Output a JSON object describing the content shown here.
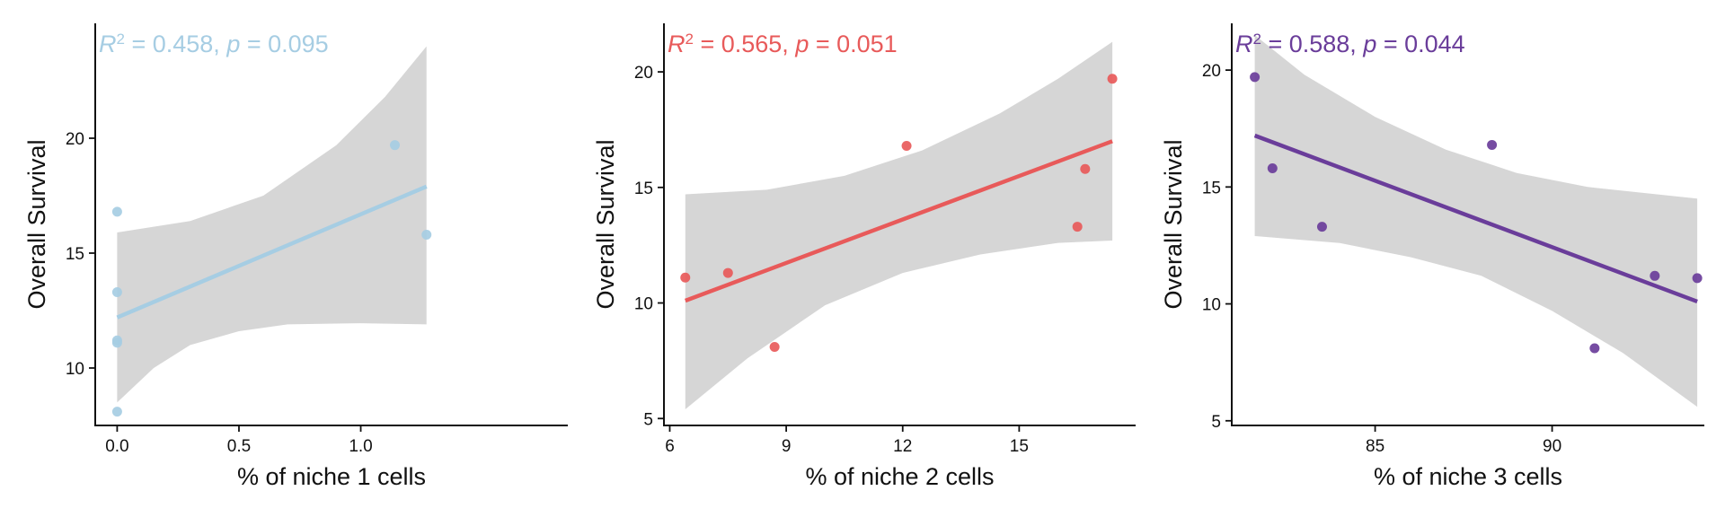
{
  "chart_data": [
    {
      "type": "scatter",
      "title": "",
      "xlabel": "% of niche 1 cells",
      "ylabel": "Overall Survival",
      "color": "#a6cde3",
      "annotation": {
        "r2_label": "R",
        "r2_sup": "2",
        "r2_value": " = 0.458, ",
        "p_label": "p",
        "p_value": " = 0.095"
      },
      "xlim": [
        -0.09,
        1.85
      ],
      "ylim": [
        7.5,
        25
      ],
      "xticks": [
        0.0,
        0.5,
        1.0
      ],
      "xtick_labels": [
        "0.0",
        "0.5",
        "1.0"
      ],
      "yticks": [
        10,
        15,
        20
      ],
      "ytick_labels": [
        "10",
        "15",
        "20"
      ],
      "points": [
        {
          "x": 0.0,
          "y": 16.8
        },
        {
          "x": 0.0,
          "y": 13.3
        },
        {
          "x": 0.0,
          "y": 11.2
        },
        {
          "x": 0.0,
          "y": 11.1
        },
        {
          "x": 0.0,
          "y": 8.1
        },
        {
          "x": 1.14,
          "y": 19.7
        },
        {
          "x": 1.27,
          "y": 15.8
        }
      ],
      "fit": {
        "x": [
          0.0,
          1.27
        ],
        "y": [
          12.2,
          17.9
        ]
      },
      "ci_upper": [
        [
          0.0,
          15.9
        ],
        [
          0.3,
          16.4
        ],
        [
          0.6,
          17.5
        ],
        [
          0.9,
          19.7
        ],
        [
          1.1,
          21.8
        ],
        [
          1.27,
          24.0
        ]
      ],
      "ci_lower": [
        [
          0.0,
          8.5
        ],
        [
          0.15,
          10.0
        ],
        [
          0.3,
          11.0
        ],
        [
          0.5,
          11.6
        ],
        [
          0.7,
          11.9
        ],
        [
          1.0,
          11.95
        ],
        [
          1.27,
          11.9
        ]
      ]
    },
    {
      "type": "scatter",
      "title": "",
      "xlabel": "% of niche 2 cells",
      "ylabel": "Overall Survival",
      "color": "#e85a5a",
      "annotation": {
        "r2_label": "R",
        "r2_sup": "2",
        "r2_value": " = 0.565, ",
        "p_label": "p",
        "p_value": " = 0.051"
      },
      "xlim": [
        5.85,
        18.0
      ],
      "ylim": [
        4.7,
        22.1
      ],
      "xticks": [
        6,
        9,
        12,
        15
      ],
      "xtick_labels": [
        "6",
        "9",
        "12",
        "15"
      ],
      "yticks": [
        5,
        10,
        15,
        20
      ],
      "ytick_labels": [
        "5",
        "10",
        "15",
        "20"
      ],
      "points": [
        {
          "x": 6.4,
          "y": 11.1
        },
        {
          "x": 7.5,
          "y": 11.3
        },
        {
          "x": 8.7,
          "y": 8.1
        },
        {
          "x": 12.1,
          "y": 16.8
        },
        {
          "x": 16.5,
          "y": 13.3
        },
        {
          "x": 16.7,
          "y": 15.8
        },
        {
          "x": 17.4,
          "y": 19.7
        }
      ],
      "fit": {
        "x": [
          6.4,
          17.4
        ],
        "y": [
          10.1,
          17.0
        ]
      },
      "ci_upper": [
        [
          6.4,
          14.7
        ],
        [
          8.5,
          14.9
        ],
        [
          10.5,
          15.5
        ],
        [
          12.5,
          16.6
        ],
        [
          14.5,
          18.2
        ],
        [
          16.0,
          19.7
        ],
        [
          17.4,
          21.3
        ]
      ],
      "ci_lower": [
        [
          6.4,
          5.4
        ],
        [
          8.0,
          7.6
        ],
        [
          10.0,
          9.9
        ],
        [
          12.0,
          11.3
        ],
        [
          14.0,
          12.1
        ],
        [
          16.0,
          12.6
        ],
        [
          17.4,
          12.7
        ]
      ]
    },
    {
      "type": "scatter",
      "title": "",
      "xlabel": "% of niche 3 cells",
      "ylabel": "Overall Survival",
      "color": "#6a3d9a",
      "annotation": {
        "r2_label": "R",
        "r2_sup": "2",
        "r2_value": " = 0.588, ",
        "p_label": "p",
        "p_value": " = 0.044"
      },
      "xlim": [
        80.95,
        94.3
      ],
      "ylim": [
        4.8,
        22.0
      ],
      "xticks": [
        85,
        90
      ],
      "xtick_labels": [
        "85",
        "90"
      ],
      "yticks": [
        5,
        10,
        15,
        20
      ],
      "ytick_labels": [
        "5",
        "10",
        "15",
        "20"
      ],
      "points": [
        {
          "x": 81.6,
          "y": 19.7
        },
        {
          "x": 82.1,
          "y": 15.8
        },
        {
          "x": 83.5,
          "y": 13.3
        },
        {
          "x": 88.3,
          "y": 16.8
        },
        {
          "x": 91.2,
          "y": 8.1
        },
        {
          "x": 92.9,
          "y": 11.2
        },
        {
          "x": 94.1,
          "y": 11.1
        }
      ],
      "fit": {
        "x": [
          81.6,
          94.1
        ],
        "y": [
          17.2,
          10.1
        ]
      },
      "ci_upper": [
        [
          81.6,
          21.5
        ],
        [
          83.0,
          19.8
        ],
        [
          85.0,
          18.0
        ],
        [
          87.0,
          16.6
        ],
        [
          89.0,
          15.6
        ],
        [
          91.0,
          15.0
        ],
        [
          94.1,
          14.5
        ]
      ],
      "ci_lower": [
        [
          81.6,
          12.9
        ],
        [
          84.0,
          12.6
        ],
        [
          86.0,
          12.0
        ],
        [
          88.0,
          11.2
        ],
        [
          90.0,
          9.7
        ],
        [
          92.0,
          7.9
        ],
        [
          94.1,
          5.6
        ]
      ]
    }
  ]
}
